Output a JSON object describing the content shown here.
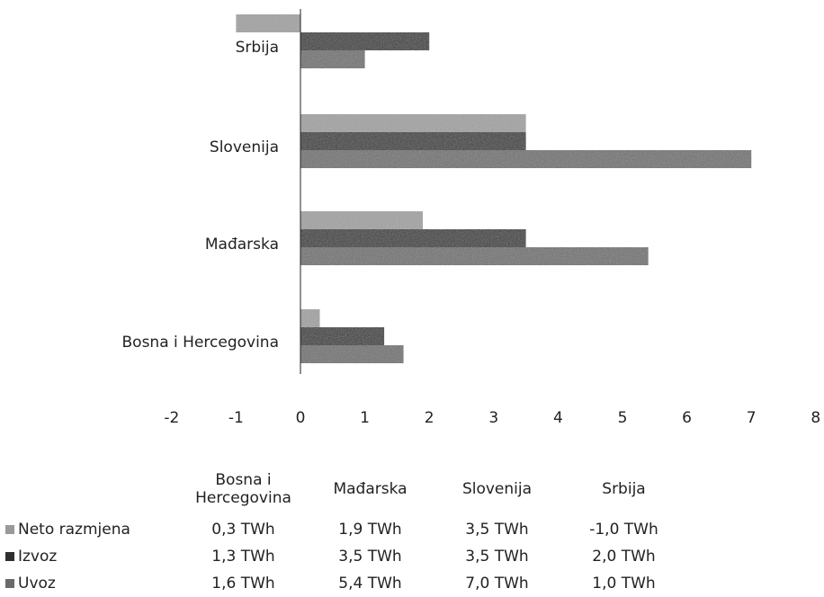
{
  "chart_data": {
    "type": "bar",
    "orientation": "horizontal",
    "categories": [
      "Bosna i Hercegovina",
      "Mađarska",
      "Slovenija",
      "Srbija"
    ],
    "category_headers": [
      "Bosna i\nHercegovina",
      "Mađarska",
      "Slovenija",
      "Srbija"
    ],
    "series": [
      {
        "name": "Neto razmjena",
        "values": [
          0.3,
          1.9,
          3.5,
          -1.0
        ],
        "labels": [
          "0,3 TWh",
          "1,9 TWh",
          "3,5 TWh",
          "-1,0 TWh"
        ],
        "color": "#9a9a9a"
      },
      {
        "name": "Izvoz",
        "values": [
          1.3,
          3.5,
          3.5,
          2.0
        ],
        "labels": [
          "1,3 TWh",
          "3,5 TWh",
          "3,5 TWh",
          "2,0 TWh"
        ],
        "color": "#2e2e2e"
      },
      {
        "name": "Uvoz",
        "values": [
          1.6,
          5.4,
          7.0,
          1.0
        ],
        "labels": [
          "1,6 TWh",
          "5,4 TWh",
          "7,0 TWh",
          "1,0 TWh"
        ],
        "color": "#6a6a6a"
      }
    ],
    "xlim": [
      -2,
      8
    ],
    "xticks": [
      -2,
      -1,
      0,
      1,
      2,
      3,
      4,
      5,
      6,
      7,
      8
    ],
    "grid": false,
    "legend": "data-table-below"
  }
}
